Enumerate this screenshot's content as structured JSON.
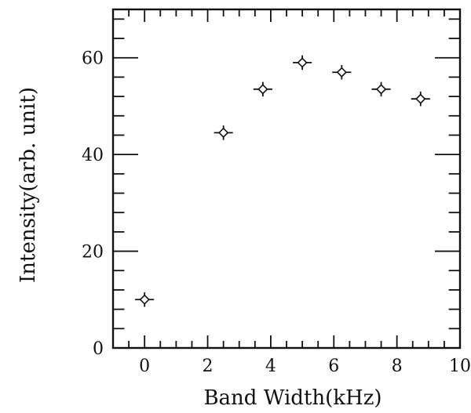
{
  "chart_data": {
    "type": "scatter",
    "title": "",
    "xlabel": "Band Width(kHz)",
    "ylabel": "Intensity(arb. unit)",
    "xlim": [
      -1,
      10
    ],
    "ylim": [
      0,
      70
    ],
    "x_ticks": [
      0,
      2,
      4,
      6,
      8,
      10
    ],
    "x_tick_labels": [
      "0",
      "2",
      "4",
      "6",
      "8",
      "10"
    ],
    "x_minor_step": 0.5,
    "y_ticks": [
      0,
      20,
      40,
      60
    ],
    "y_tick_labels": [
      "0",
      "20",
      "40",
      "60"
    ],
    "y_minor_step": 4,
    "grid": false,
    "marker": "open-diamond-with-error-cross",
    "series": [
      {
        "x": [
          0,
          2.5,
          3.75,
          5,
          6.25,
          7.5,
          8.75
        ],
        "y": [
          10,
          44.5,
          53.5,
          59,
          57,
          53.5,
          51.5
        ],
        "x_err": [
          0.3,
          0.3,
          0.3,
          0.3,
          0.3,
          0.3,
          0.3
        ],
        "y_err": [
          1.5,
          1.5,
          1.5,
          1.5,
          1.5,
          1.5,
          1.5
        ]
      }
    ]
  }
}
